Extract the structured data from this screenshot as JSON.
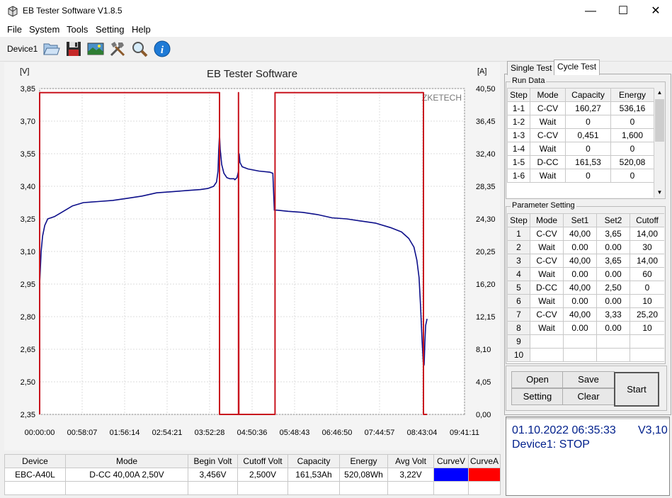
{
  "window": {
    "title": "EB Tester Software V1.8.5",
    "minimize": "—",
    "maximize": "☐",
    "close": "✕"
  },
  "menu": [
    "File",
    "System",
    "Tools",
    "Setting",
    "Help"
  ],
  "toolbar": {
    "device": "Device1",
    "icons": [
      "open-folder-icon",
      "save-disk-icon",
      "image-icon",
      "tools-icon",
      "search-icon",
      "info-icon"
    ]
  },
  "chart_data": {
    "type": "line",
    "title": "EB Tester Software",
    "watermark": "ZKETECH",
    "left_unit": "[V]",
    "right_unit": "[A]",
    "ylim_left": [
      2.35,
      3.85
    ],
    "ylim_right": [
      0,
      40.5
    ],
    "yticks_left": [
      "3,85",
      "3,70",
      "3,55",
      "3,40",
      "3,25",
      "3,10",
      "2,95",
      "2,80",
      "2,65",
      "2,50",
      "2,35"
    ],
    "yticks_right": [
      "40,50",
      "36,45",
      "32,40",
      "28,35",
      "24,30",
      "20,25",
      "16,20",
      "12,15",
      "8,10",
      "4,05",
      "0,00"
    ],
    "xticks": [
      "00:00:00",
      "00:58:07",
      "01:56:14",
      "02:54:21",
      "03:52:28",
      "04:50:36",
      "05:48:43",
      "06:46:50",
      "07:44:57",
      "08:43:04",
      "09:41:11"
    ],
    "xlim_minutes": [
      0,
      581.2
    ],
    "grid": true,
    "series": [
      {
        "color": "#0d0f8a",
        "axis": "left",
        "points": [
          [
            0,
            2.95
          ],
          [
            2,
            3.1
          ],
          [
            4,
            3.17
          ],
          [
            7,
            3.22
          ],
          [
            11,
            3.25
          ],
          [
            20,
            3.26
          ],
          [
            30,
            3.28
          ],
          [
            45,
            3.31
          ],
          [
            60,
            3.325
          ],
          [
            80,
            3.33
          ],
          [
            100,
            3.335
          ],
          [
            120,
            3.345
          ],
          [
            140,
            3.355
          ],
          [
            160,
            3.37
          ],
          [
            180,
            3.375
          ],
          [
            200,
            3.38
          ],
          [
            220,
            3.385
          ],
          [
            230,
            3.39
          ],
          [
            238,
            3.4
          ],
          [
            242,
            3.42
          ],
          [
            244,
            3.47
          ],
          [
            245,
            3.57
          ],
          [
            246,
            3.64
          ],
          [
            247,
            3.57
          ],
          [
            249,
            3.5
          ],
          [
            252,
            3.46
          ],
          [
            256,
            3.44
          ],
          [
            260,
            3.435
          ],
          [
            266,
            3.435
          ],
          [
            267,
            3.43
          ],
          [
            270,
            3.44
          ],
          [
            272,
            3.47
          ],
          [
            273,
            3.55
          ],
          [
            274,
            3.51
          ],
          [
            277,
            3.49
          ],
          [
            285,
            3.48
          ],
          [
            300,
            3.47
          ],
          [
            315,
            3.465
          ],
          [
            319,
            3.46
          ],
          [
            320,
            3.37
          ],
          [
            321,
            3.29
          ],
          [
            325,
            3.29
          ],
          [
            340,
            3.285
          ],
          [
            360,
            3.28
          ],
          [
            380,
            3.27
          ],
          [
            400,
            3.255
          ],
          [
            420,
            3.25
          ],
          [
            440,
            3.24
          ],
          [
            460,
            3.23
          ],
          [
            480,
            3.21
          ],
          [
            495,
            3.19
          ],
          [
            505,
            3.16
          ],
          [
            512,
            3.12
          ],
          [
            516,
            3.06
          ],
          [
            519,
            2.98
          ],
          [
            521,
            2.85
          ],
          [
            523,
            2.7
          ],
          [
            525,
            2.57
          ],
          [
            526,
            2.58
          ],
          [
            527,
            2.68
          ],
          [
            528,
            2.76
          ],
          [
            530,
            2.79
          ]
        ]
      },
      {
        "color": "#c8141e",
        "axis": "right",
        "points": [
          [
            0,
            0
          ],
          [
            0,
            40
          ],
          [
            246,
            40
          ],
          [
            246,
            0
          ],
          [
            272,
            0
          ],
          [
            272,
            40
          ],
          [
            272.5,
            0
          ],
          [
            322,
            0
          ],
          [
            322,
            40
          ],
          [
            525,
            40
          ],
          [
            525,
            0
          ],
          [
            530,
            0
          ]
        ]
      }
    ]
  },
  "right_tabs": [
    "Single Test",
    "Cycle Test"
  ],
  "run_data": {
    "title": "Run Data",
    "headers": [
      "Step",
      "Mode",
      "Capacity",
      "Energy"
    ],
    "rows": [
      [
        "1-1",
        "C-CV",
        "160,27",
        "536,16"
      ],
      [
        "1-2",
        "Wait",
        "0",
        "0"
      ],
      [
        "1-3",
        "C-CV",
        "0,451",
        "1,600"
      ],
      [
        "1-4",
        "Wait",
        "0",
        "0"
      ],
      [
        "1-5",
        "D-CC",
        "161,53",
        "520,08"
      ],
      [
        "1-6",
        "Wait",
        "0",
        "0"
      ]
    ]
  },
  "param_setting": {
    "title": "Parameter Setting",
    "headers": [
      "Step",
      "Mode",
      "Set1",
      "Set2",
      "Cutoff"
    ],
    "rows": [
      [
        "1",
        "C-CV",
        "40,00",
        "3,65",
        "14,00"
      ],
      [
        "2",
        "Wait",
        "0.00",
        "0.00",
        "30"
      ],
      [
        "3",
        "C-CV",
        "40,00",
        "3,65",
        "14,00"
      ],
      [
        "4",
        "Wait",
        "0.00",
        "0.00",
        "60"
      ],
      [
        "5",
        "D-CC",
        "40,00",
        "2,50",
        "0"
      ],
      [
        "6",
        "Wait",
        "0.00",
        "0.00",
        "10"
      ],
      [
        "7",
        "C-CV",
        "40,00",
        "3,33",
        "25,20"
      ],
      [
        "8",
        "Wait",
        "0.00",
        "0.00",
        "10"
      ],
      [
        "9",
        "",
        "",
        "",
        ""
      ],
      [
        "10",
        "",
        "",
        "",
        ""
      ]
    ]
  },
  "buttons": {
    "open": "Open",
    "save": "Save",
    "setting": "Setting",
    "clear": "Clear",
    "start": "Start"
  },
  "status": {
    "datetime": "01.10.2022 06:35:33",
    "voltage": "V3,10",
    "device_state": "Device1: STOP"
  },
  "bottom": {
    "headers": [
      "Device",
      "Mode",
      "Begin Volt",
      "Cutoff Volt",
      "Capacity",
      "Energy",
      "Avg Volt",
      "CurveV",
      "CurveA"
    ],
    "row": [
      "EBC-A40L",
      "D-CC  40,00A  2,50V",
      "3,456V",
      "2,500V",
      "161,53Ah",
      "520,08Wh",
      "3,22V"
    ],
    "curve_v_color": "#0000ff",
    "curve_a_color": "#ff0000"
  }
}
